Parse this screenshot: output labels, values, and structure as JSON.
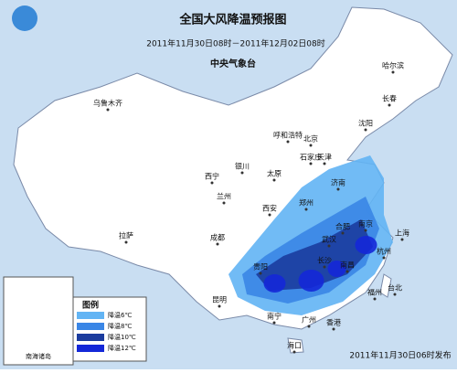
{
  "header": {
    "title": "全国大风降温预报图",
    "period": "2011年11月30日08时－2011年12月02日08时",
    "agency": "中央气象台"
  },
  "legend": {
    "title": "图例",
    "items": [
      {
        "label": "降温6℃",
        "color": "#62b4f4"
      },
      {
        "label": "降温8℃",
        "color": "#3a86e6"
      },
      {
        "label": "降温10℃",
        "color": "#1b3c9e"
      },
      {
        "label": "降温12℃",
        "color": "#1428d8"
      }
    ]
  },
  "cities": [
    "乌鲁木齐",
    "哈尔滨",
    "长春",
    "沈阳",
    "呼和浩特",
    "北京",
    "天津",
    "银川",
    "太原",
    "石家庄",
    "济南",
    "西宁",
    "兰州",
    "郑州",
    "西安",
    "拉萨",
    "成都",
    "武汉",
    "南京",
    "上海",
    "合肥",
    "杭州",
    "长沙",
    "南昌",
    "福州",
    "台北",
    "昆明",
    "贵阳",
    "南宁",
    "广州",
    "香港",
    "海口"
  ],
  "inset_label": "南海诸岛",
  "footer": "2011年11月30日06时发布"
}
